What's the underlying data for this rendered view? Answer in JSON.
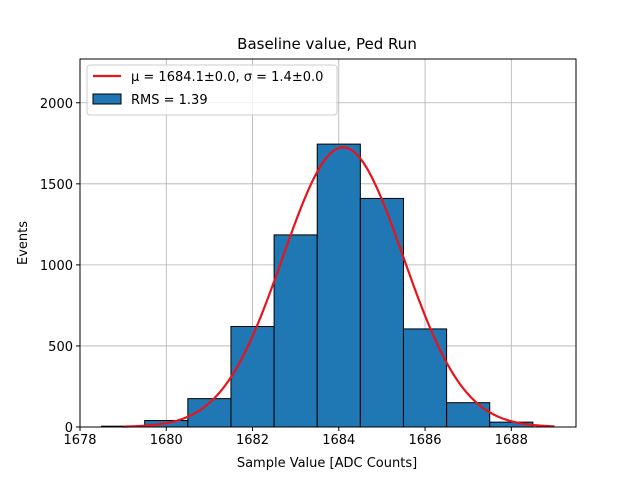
{
  "chart_data": {
    "type": "bar",
    "title": "Baseline value, Ped Run",
    "xlabel": "Sample Value [ADC Counts]",
    "ylabel": "Events",
    "xlim": [
      1678,
      1689.5
    ],
    "ylim": [
      0,
      2270
    ],
    "xticks": [
      1678,
      1680,
      1682,
      1684,
      1686,
      1688
    ],
    "yticks": [
      0,
      500,
      1000,
      1500,
      2000
    ],
    "grid": true,
    "legend_position": "top-left",
    "histogram": {
      "name": "RMS = 1.39",
      "color": "#1f77b4",
      "edgecolor": "#000000",
      "bins": [
        {
          "start": 1678.5,
          "end": 1679.5,
          "value": 5
        },
        {
          "start": 1679.5,
          "end": 1680.5,
          "value": 40
        },
        {
          "start": 1680.5,
          "end": 1681.5,
          "value": 175
        },
        {
          "start": 1681.5,
          "end": 1682.5,
          "value": 620
        },
        {
          "start": 1682.5,
          "end": 1683.5,
          "value": 1185
        },
        {
          "start": 1683.5,
          "end": 1684.5,
          "value": 1745
        },
        {
          "start": 1684.5,
          "end": 1685.5,
          "value": 1410
        },
        {
          "start": 1685.5,
          "end": 1686.5,
          "value": 605
        },
        {
          "start": 1686.5,
          "end": 1687.5,
          "value": 150
        },
        {
          "start": 1687.5,
          "end": 1688.5,
          "value": 30
        }
      ]
    },
    "fit": {
      "name": "μ = 1684.1±0.0, σ = 1.4±0.0",
      "color": "#e8131b",
      "mu": 1684.1,
      "sigma": 1.4,
      "amplitude": 1725,
      "x_range": [
        1679,
        1689
      ]
    }
  }
}
